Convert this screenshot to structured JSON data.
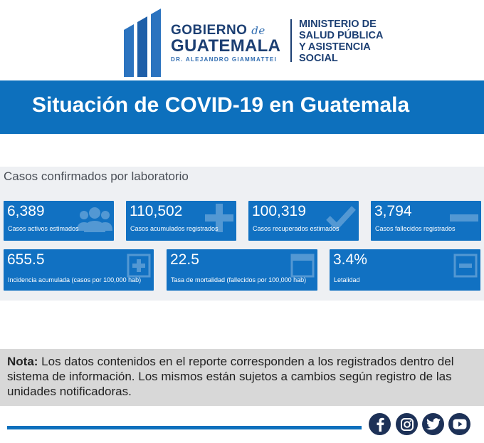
{
  "header": {
    "gov_line1": "GOBIERNO",
    "gov_de": "de",
    "gov_line2": "GUATEMALA",
    "gov_line3": "DR. ALEJANDRO GIAMMATTEI",
    "ministry_line1": "MINISTERIO DE",
    "ministry_line2": "SALUD PÚBLICA",
    "ministry_line3": "Y ASISTENCIA",
    "ministry_line4": "SOCIAL"
  },
  "title": "Situación de COVID-19 en Guatemala",
  "panel": {
    "title": "Casos confirmados por laboratorio",
    "cards": [
      {
        "value": "6,389",
        "label": "Casos activos estimados",
        "icon": "users-icon"
      },
      {
        "value": "110,502",
        "label": "Casos acumulados registrados",
        "icon": "plus-icon"
      },
      {
        "value": "100,319",
        "label": "Casos recuperados estimados",
        "icon": "check-icon"
      },
      {
        "value": "3,794",
        "label": "Casos fallecidos registrados",
        "icon": "minus-icon"
      },
      {
        "value": "655.5",
        "label": "Incidencia acumulada (casos por 100,000 hab)",
        "icon": "plus-square-icon"
      },
      {
        "value": "22.5",
        "label": "Tasa de mortalidad (fallecidos por 100,000 hab)",
        "icon": "window-icon"
      },
      {
        "value": "3.4%",
        "label": "Letalidad",
        "icon": "minus-square-icon"
      }
    ]
  },
  "note": {
    "label": "Nota:",
    "text": " Los datos contenidos en el reporte corresponden a los registrados dentro del sistema de información. Los mismos están sujetos a cambios según registro de las unidades notificadoras."
  },
  "social": [
    "facebook-icon",
    "instagram-icon",
    "twitter-icon",
    "youtube-icon"
  ],
  "colors": {
    "brand_blue": "#0d70bd",
    "card_blue": "#1171c2",
    "navy": "#1c3f73",
    "social_bg": "#1d3157"
  }
}
